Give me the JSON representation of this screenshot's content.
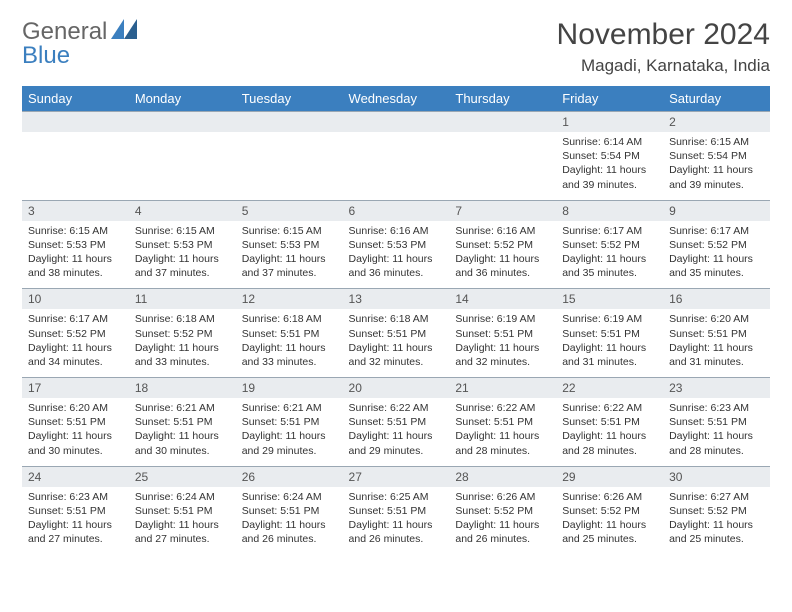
{
  "logo": {
    "general": "General",
    "blue": "Blue"
  },
  "title": "November 2024",
  "location": "Magadi, Karnataka, India",
  "colors": {
    "header_bg": "#3b7fbf",
    "header_text": "#ffffff",
    "daynum_bg": "#e9ecef",
    "border": "#9aa7b3",
    "body_text": "#333333",
    "title_text": "#444444"
  },
  "weekdays": [
    "Sunday",
    "Monday",
    "Tuesday",
    "Wednesday",
    "Thursday",
    "Friday",
    "Saturday"
  ],
  "weeks": [
    [
      {
        "n": "",
        "sr": "",
        "ss": "",
        "dl": ""
      },
      {
        "n": "",
        "sr": "",
        "ss": "",
        "dl": ""
      },
      {
        "n": "",
        "sr": "",
        "ss": "",
        "dl": ""
      },
      {
        "n": "",
        "sr": "",
        "ss": "",
        "dl": ""
      },
      {
        "n": "",
        "sr": "",
        "ss": "",
        "dl": ""
      },
      {
        "n": "1",
        "sr": "Sunrise: 6:14 AM",
        "ss": "Sunset: 5:54 PM",
        "dl": "Daylight: 11 hours and 39 minutes."
      },
      {
        "n": "2",
        "sr": "Sunrise: 6:15 AM",
        "ss": "Sunset: 5:54 PM",
        "dl": "Daylight: 11 hours and 39 minutes."
      }
    ],
    [
      {
        "n": "3",
        "sr": "Sunrise: 6:15 AM",
        "ss": "Sunset: 5:53 PM",
        "dl": "Daylight: 11 hours and 38 minutes."
      },
      {
        "n": "4",
        "sr": "Sunrise: 6:15 AM",
        "ss": "Sunset: 5:53 PM",
        "dl": "Daylight: 11 hours and 37 minutes."
      },
      {
        "n": "5",
        "sr": "Sunrise: 6:15 AM",
        "ss": "Sunset: 5:53 PM",
        "dl": "Daylight: 11 hours and 37 minutes."
      },
      {
        "n": "6",
        "sr": "Sunrise: 6:16 AM",
        "ss": "Sunset: 5:53 PM",
        "dl": "Daylight: 11 hours and 36 minutes."
      },
      {
        "n": "7",
        "sr": "Sunrise: 6:16 AM",
        "ss": "Sunset: 5:52 PM",
        "dl": "Daylight: 11 hours and 36 minutes."
      },
      {
        "n": "8",
        "sr": "Sunrise: 6:17 AM",
        "ss": "Sunset: 5:52 PM",
        "dl": "Daylight: 11 hours and 35 minutes."
      },
      {
        "n": "9",
        "sr": "Sunrise: 6:17 AM",
        "ss": "Sunset: 5:52 PM",
        "dl": "Daylight: 11 hours and 35 minutes."
      }
    ],
    [
      {
        "n": "10",
        "sr": "Sunrise: 6:17 AM",
        "ss": "Sunset: 5:52 PM",
        "dl": "Daylight: 11 hours and 34 minutes."
      },
      {
        "n": "11",
        "sr": "Sunrise: 6:18 AM",
        "ss": "Sunset: 5:52 PM",
        "dl": "Daylight: 11 hours and 33 minutes."
      },
      {
        "n": "12",
        "sr": "Sunrise: 6:18 AM",
        "ss": "Sunset: 5:51 PM",
        "dl": "Daylight: 11 hours and 33 minutes."
      },
      {
        "n": "13",
        "sr": "Sunrise: 6:18 AM",
        "ss": "Sunset: 5:51 PM",
        "dl": "Daylight: 11 hours and 32 minutes."
      },
      {
        "n": "14",
        "sr": "Sunrise: 6:19 AM",
        "ss": "Sunset: 5:51 PM",
        "dl": "Daylight: 11 hours and 32 minutes."
      },
      {
        "n": "15",
        "sr": "Sunrise: 6:19 AM",
        "ss": "Sunset: 5:51 PM",
        "dl": "Daylight: 11 hours and 31 minutes."
      },
      {
        "n": "16",
        "sr": "Sunrise: 6:20 AM",
        "ss": "Sunset: 5:51 PM",
        "dl": "Daylight: 11 hours and 31 minutes."
      }
    ],
    [
      {
        "n": "17",
        "sr": "Sunrise: 6:20 AM",
        "ss": "Sunset: 5:51 PM",
        "dl": "Daylight: 11 hours and 30 minutes."
      },
      {
        "n": "18",
        "sr": "Sunrise: 6:21 AM",
        "ss": "Sunset: 5:51 PM",
        "dl": "Daylight: 11 hours and 30 minutes."
      },
      {
        "n": "19",
        "sr": "Sunrise: 6:21 AM",
        "ss": "Sunset: 5:51 PM",
        "dl": "Daylight: 11 hours and 29 minutes."
      },
      {
        "n": "20",
        "sr": "Sunrise: 6:22 AM",
        "ss": "Sunset: 5:51 PM",
        "dl": "Daylight: 11 hours and 29 minutes."
      },
      {
        "n": "21",
        "sr": "Sunrise: 6:22 AM",
        "ss": "Sunset: 5:51 PM",
        "dl": "Daylight: 11 hours and 28 minutes."
      },
      {
        "n": "22",
        "sr": "Sunrise: 6:22 AM",
        "ss": "Sunset: 5:51 PM",
        "dl": "Daylight: 11 hours and 28 minutes."
      },
      {
        "n": "23",
        "sr": "Sunrise: 6:23 AM",
        "ss": "Sunset: 5:51 PM",
        "dl": "Daylight: 11 hours and 28 minutes."
      }
    ],
    [
      {
        "n": "24",
        "sr": "Sunrise: 6:23 AM",
        "ss": "Sunset: 5:51 PM",
        "dl": "Daylight: 11 hours and 27 minutes."
      },
      {
        "n": "25",
        "sr": "Sunrise: 6:24 AM",
        "ss": "Sunset: 5:51 PM",
        "dl": "Daylight: 11 hours and 27 minutes."
      },
      {
        "n": "26",
        "sr": "Sunrise: 6:24 AM",
        "ss": "Sunset: 5:51 PM",
        "dl": "Daylight: 11 hours and 26 minutes."
      },
      {
        "n": "27",
        "sr": "Sunrise: 6:25 AM",
        "ss": "Sunset: 5:51 PM",
        "dl": "Daylight: 11 hours and 26 minutes."
      },
      {
        "n": "28",
        "sr": "Sunrise: 6:26 AM",
        "ss": "Sunset: 5:52 PM",
        "dl": "Daylight: 11 hours and 26 minutes."
      },
      {
        "n": "29",
        "sr": "Sunrise: 6:26 AM",
        "ss": "Sunset: 5:52 PM",
        "dl": "Daylight: 11 hours and 25 minutes."
      },
      {
        "n": "30",
        "sr": "Sunrise: 6:27 AM",
        "ss": "Sunset: 5:52 PM",
        "dl": "Daylight: 11 hours and 25 minutes."
      }
    ]
  ]
}
